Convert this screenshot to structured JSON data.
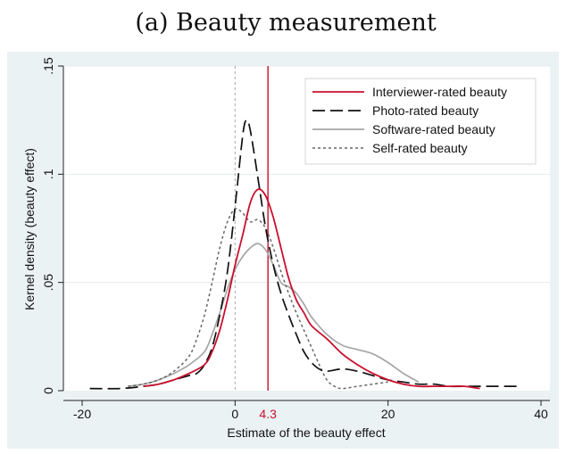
{
  "chart_data": {
    "type": "line",
    "title": "(a) Beauty measurement",
    "xlabel": "Estimate of the beauty effect",
    "ylabel": "Kernel density (beauty effect)",
    "xlim": [
      -20,
      40
    ],
    "ylim": [
      0,
      0.15
    ],
    "x_ticks": [
      {
        "value": -20,
        "label": "-20"
      },
      {
        "value": 0,
        "label": "0"
      },
      {
        "value": 20,
        "label": "20"
      },
      {
        "value": 40,
        "label": "40"
      }
    ],
    "y_ticks": [
      {
        "value": 0,
        "label": "0"
      },
      {
        "value": 0.05,
        "label": ".05"
      },
      {
        "value": 0.1,
        "label": ".1"
      },
      {
        "value": 0.15,
        "label": ".15"
      }
    ],
    "grid": true,
    "legend_position": "top-right",
    "reference_lines": [
      {
        "x": 4.3,
        "label": "4.3",
        "color": "#c8102e",
        "style": "solid"
      },
      {
        "x": 0,
        "label": "",
        "color": "#aaaaaa",
        "style": "dashed"
      }
    ],
    "series": [
      {
        "name": "Interviewer-rated beauty",
        "color": "#c8102e",
        "dash": "",
        "width": 1.8,
        "x": [
          -12,
          -10,
          -8,
          -6,
          -4,
          -3,
          -2,
          -1,
          0,
          1,
          2,
          3,
          4,
          5,
          6,
          7,
          8,
          9,
          10,
          12,
          14,
          16,
          18,
          20,
          22,
          24,
          26,
          28,
          30,
          32
        ],
        "y": [
          0.002,
          0.003,
          0.005,
          0.008,
          0.012,
          0.018,
          0.028,
          0.042,
          0.058,
          0.072,
          0.087,
          0.093,
          0.09,
          0.08,
          0.066,
          0.052,
          0.042,
          0.036,
          0.03,
          0.024,
          0.017,
          0.012,
          0.008,
          0.005,
          0.003,
          0.002,
          0.002,
          0.002,
          0.002,
          0.001
        ]
      },
      {
        "name": "Photo-rated beauty",
        "color": "#111111",
        "dash": "14 6",
        "width": 1.7,
        "x": [
          -19,
          -15,
          -12,
          -10,
          -8,
          -6,
          -5,
          -4,
          -3,
          -2,
          -1,
          0,
          1,
          1.5,
          2,
          3,
          4,
          5,
          6,
          7,
          8,
          9,
          10,
          11,
          12,
          14,
          16,
          18,
          20,
          22,
          24,
          26,
          28,
          30,
          34,
          37
        ],
        "y": [
          0.001,
          0.001,
          0.002,
          0.003,
          0.005,
          0.007,
          0.008,
          0.012,
          0.02,
          0.035,
          0.055,
          0.085,
          0.118,
          0.125,
          0.12,
          0.098,
          0.075,
          0.058,
          0.045,
          0.035,
          0.026,
          0.018,
          0.013,
          0.01,
          0.009,
          0.01,
          0.009,
          0.007,
          0.005,
          0.004,
          0.003,
          0.003,
          0.002,
          0.002,
          0.002,
          0.002
        ]
      },
      {
        "name": "Software-rated beauty",
        "color": "#a6a6a6",
        "dash": "",
        "width": 1.7,
        "x": [
          -14,
          -12,
          -10,
          -8,
          -6,
          -4,
          -3,
          -2,
          -1,
          0,
          1,
          2,
          3,
          4,
          5,
          6,
          7,
          8,
          9,
          10,
          12,
          14,
          16,
          18,
          20,
          22,
          24
        ],
        "y": [
          0.002,
          0.003,
          0.005,
          0.008,
          0.012,
          0.018,
          0.026,
          0.036,
          0.047,
          0.056,
          0.062,
          0.066,
          0.068,
          0.065,
          0.058,
          0.05,
          0.048,
          0.045,
          0.04,
          0.034,
          0.026,
          0.021,
          0.019,
          0.017,
          0.013,
          0.008,
          0.004
        ]
      },
      {
        "name": "Self-rated beauty",
        "color": "#666666",
        "dash": "3 3",
        "width": 1.5,
        "x": [
          -14,
          -12,
          -10,
          -8,
          -6,
          -5,
          -4,
          -3,
          -2,
          -1,
          0,
          1,
          2,
          3,
          4,
          5,
          6,
          7,
          8,
          9,
          10,
          11,
          12,
          13,
          14,
          16,
          18,
          20
        ],
        "y": [
          0.002,
          0.003,
          0.005,
          0.009,
          0.016,
          0.024,
          0.035,
          0.05,
          0.066,
          0.078,
          0.084,
          0.082,
          0.078,
          0.079,
          0.075,
          0.066,
          0.055,
          0.045,
          0.036,
          0.028,
          0.02,
          0.012,
          0.005,
          0.002,
          0.001,
          0.002,
          0.003,
          0.004
        ]
      }
    ]
  }
}
